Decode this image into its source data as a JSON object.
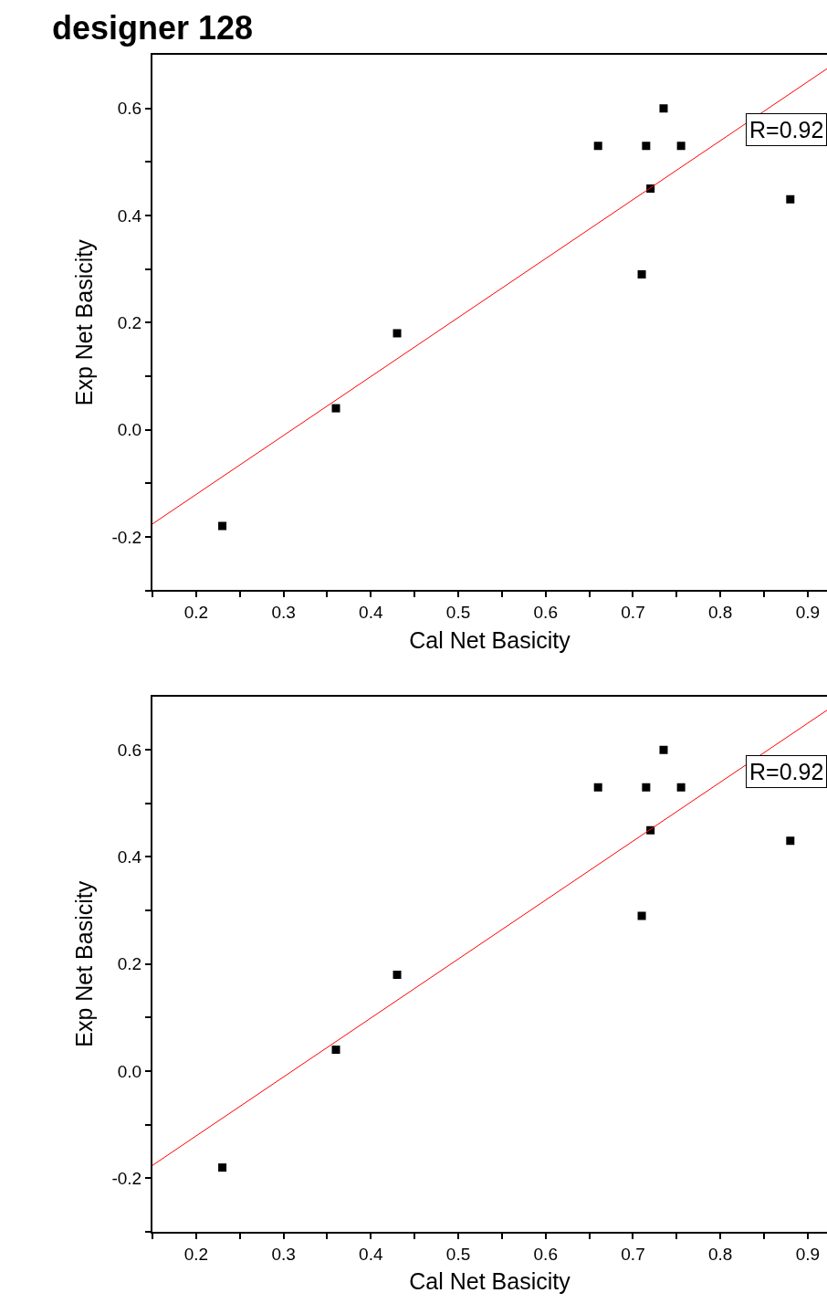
{
  "chart_data": [
    {
      "type": "scatter",
      "title": "designer 128",
      "xlabel": "Cal Net Basicity",
      "ylabel": "Exp Net Basicity",
      "annotations": [
        "R=0.92"
      ],
      "xlim": [
        0.15,
        0.922
      ],
      "ylim": [
        -0.3,
        0.7
      ],
      "xticks": [
        {
          "value": 0.15,
          "label": null
        },
        0.2,
        {
          "value": 0.25,
          "label": null
        },
        0.3,
        {
          "value": 0.35,
          "label": null
        },
        0.4,
        {
          "value": 0.45,
          "label": null
        },
        0.5,
        {
          "value": 0.55,
          "label": null
        },
        0.6,
        {
          "value": 0.65,
          "label": null
        },
        0.7,
        {
          "value": 0.75,
          "label": null
        },
        0.8,
        {
          "value": 0.85,
          "label": null
        },
        0.9
      ],
      "yticks": [
        {
          "value": -0.3,
          "label": null
        },
        -0.2,
        {
          "value": -0.1,
          "label": null
        },
        {
          "value": 0,
          "label": "0.0"
        },
        {
          "value": 0.1,
          "label": null
        },
        0.2,
        {
          "value": 0.3,
          "label": null
        },
        0.4,
        {
          "value": 0.5,
          "label": null
        },
        0.6
      ],
      "series": [
        {
          "marker": "square",
          "color": "#000000",
          "x": [
            0.23,
            0.36,
            0.43,
            0.66,
            0.715,
            0.755,
            0.735,
            0.72,
            0.71,
            0.88
          ],
          "values": [
            -0.18,
            0.04,
            0.18,
            0.53,
            0.53,
            0.53,
            0.6,
            0.45,
            0.29,
            0.43
          ]
        },
        {
          "type": "line",
          "marker": "none",
          "color": "#ff0000",
          "x": [
            0.15,
            0.922
          ],
          "values": [
            -0.176,
            0.674
          ]
        }
      ]
    },
    {
      "type": "scatter",
      "xlabel": "Cal Net Basicity",
      "ylabel": "Exp Net Basicity",
      "annotations": [
        "R=0.92"
      ],
      "xlim": [
        0.15,
        0.922
      ],
      "ylim": [
        -0.3,
        0.7
      ],
      "xticks": [
        {
          "value": 0.15,
          "label": null
        },
        0.2,
        {
          "value": 0.25,
          "label": null
        },
        0.3,
        {
          "value": 0.35,
          "label": null
        },
        0.4,
        {
          "value": 0.45,
          "label": null
        },
        0.5,
        {
          "value": 0.55,
          "label": null
        },
        0.6,
        {
          "value": 0.65,
          "label": null
        },
        0.7,
        {
          "value": 0.75,
          "label": null
        },
        0.8,
        {
          "value": 0.85,
          "label": null
        },
        0.9
      ],
      "yticks": [
        {
          "value": -0.3,
          "label": null
        },
        -0.2,
        {
          "value": -0.1,
          "label": null
        },
        {
          "value": 0,
          "label": "0.0"
        },
        {
          "value": 0.1,
          "label": null
        },
        0.2,
        {
          "value": 0.3,
          "label": null
        },
        0.4,
        {
          "value": 0.5,
          "label": null
        },
        0.6
      ],
      "series": [
        {
          "marker": "square",
          "color": "#000000",
          "x": [
            0.23,
            0.36,
            0.43,
            0.66,
            0.715,
            0.755,
            0.735,
            0.72,
            0.71,
            0.88
          ],
          "values": [
            -0.18,
            0.04,
            0.18,
            0.53,
            0.53,
            0.53,
            0.6,
            0.45,
            0.29,
            0.43
          ]
        },
        {
          "type": "line",
          "marker": "none",
          "color": "#ff0000",
          "x": [
            0.15,
            0.922
          ],
          "values": [
            -0.176,
            0.674
          ]
        }
      ]
    }
  ]
}
